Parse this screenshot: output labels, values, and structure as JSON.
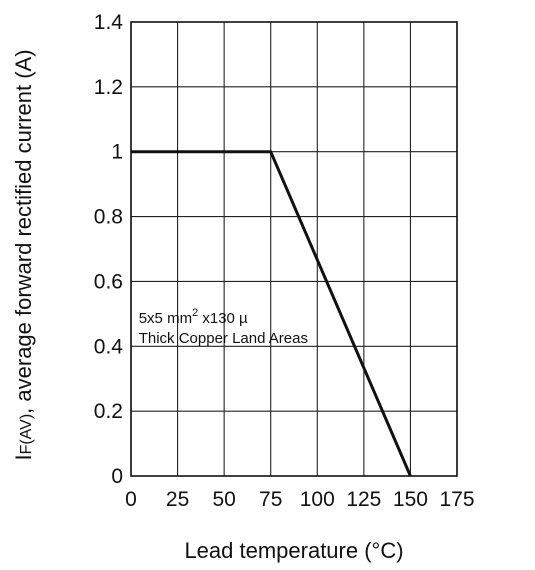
{
  "chart_data": {
    "type": "line",
    "title": "",
    "xlabel": "Lead temperature (°C)",
    "ylabel_main": "I",
    "ylabel_sub": "F(AV)",
    "ylabel_rest": ", average forward rectified current (A)",
    "xlim": [
      0,
      175
    ],
    "ylim": [
      0,
      1.4
    ],
    "x_ticks": [
      0,
      25,
      50,
      75,
      100,
      125,
      150,
      175
    ],
    "y_ticks": [
      0,
      0.2,
      0.4,
      0.6,
      0.8,
      1,
      1.2,
      1.4
    ],
    "x_tick_labels": [
      "0",
      "25",
      "50",
      "75",
      "100",
      "125",
      "150",
      "175"
    ],
    "y_tick_labels": [
      "0",
      "0.2",
      "0.4",
      "0.6",
      "0.8",
      "1",
      "1.2",
      "1.4"
    ],
    "grid": true,
    "series": [
      {
        "x": [
          0,
          75,
          150
        ],
        "y": [
          1,
          1,
          0
        ]
      }
    ],
    "annotation": {
      "line1_main": "5x5 mm",
      "line1_sup": "2",
      "line1_rest": " x130 µ",
      "line2": "Thick Copper Land Areas",
      "x": 2,
      "y": 0.45
    }
  }
}
